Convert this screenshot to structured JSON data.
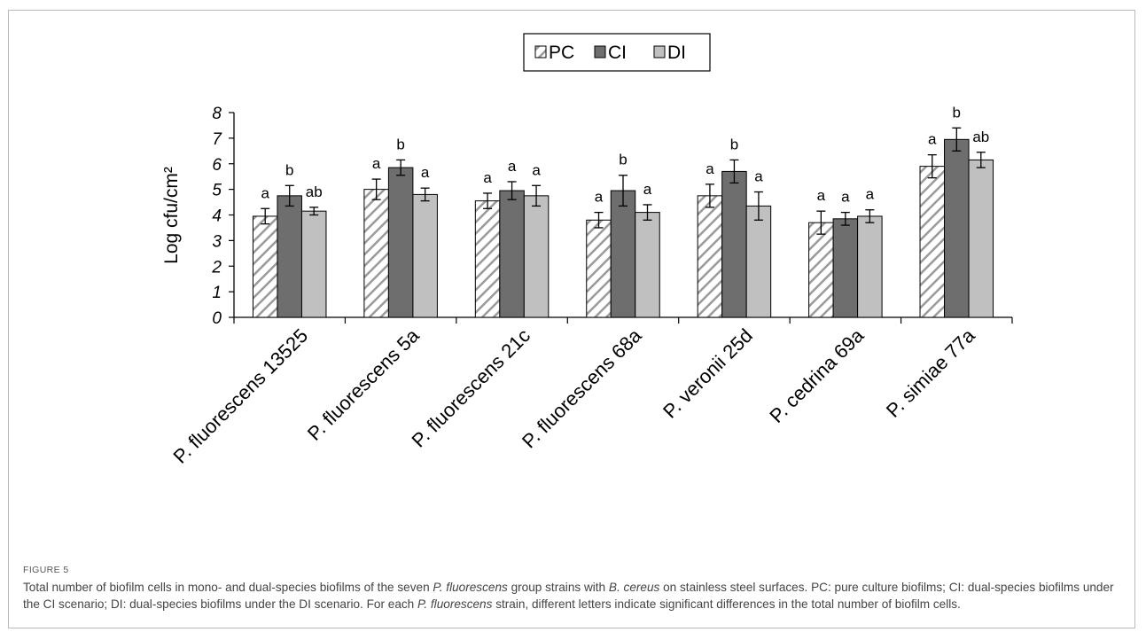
{
  "figure_label": "FIGURE 5",
  "caption": {
    "parts": [
      {
        "t": "Total number of biofilm cells in mono- and dual-species biofilms of the seven "
      },
      {
        "t": "P. fluorescens",
        "i": true
      },
      {
        "t": " group strains with "
      },
      {
        "t": "B. cereus",
        "i": true
      },
      {
        "t": " on stainless steel surfaces. PC: pure culture biofilms; CI: dual-species biofilms under the CI scenario; DI: dual-species biofilms under the DI scenario. For each "
      },
      {
        "t": "P. fluorescens",
        "i": true
      },
      {
        "t": " strain, different letters indicate significant differences in the total number of biofilm cells."
      }
    ]
  },
  "chart_data": {
    "type": "bar",
    "title": "",
    "xlabel": "",
    "ylabel": "Log cfu/cm²",
    "ylim": [
      0,
      8
    ],
    "yticks": [
      "0",
      "1",
      "2",
      "3",
      "4",
      "5",
      "6",
      "7",
      "8"
    ],
    "grid": false,
    "legend_position": "top-center",
    "categories": [
      "P. fluorescens 13525",
      "P. fluorescens 5a",
      "P. fluorescens 21c",
      "P. fluorescens 68a",
      "P. veronii 25d",
      "P. cedrina 69a",
      "P. simiae 77a"
    ],
    "series": [
      {
        "name": "PC",
        "pattern": "hatched",
        "color": "#ffffff",
        "values": [
          3.95,
          5.0,
          4.55,
          3.8,
          4.75,
          3.7,
          5.9
        ],
        "errors": [
          0.3,
          0.4,
          0.3,
          0.3,
          0.45,
          0.45,
          0.45
        ],
        "letters": [
          "a",
          "a",
          "a",
          "a",
          "a",
          "a",
          "a"
        ]
      },
      {
        "name": "CI",
        "pattern": "solid",
        "color": "#6e6e6e",
        "values": [
          4.75,
          5.85,
          4.95,
          4.95,
          5.7,
          3.85,
          6.95
        ],
        "errors": [
          0.4,
          0.3,
          0.35,
          0.6,
          0.45,
          0.25,
          0.45
        ],
        "letters": [
          "b",
          "b",
          "a",
          "b",
          "b",
          "a",
          "b"
        ]
      },
      {
        "name": "DI",
        "pattern": "solid",
        "color": "#c0c0c0",
        "values": [
          4.15,
          4.8,
          4.75,
          4.1,
          4.35,
          3.95,
          6.15
        ],
        "errors": [
          0.15,
          0.25,
          0.4,
          0.3,
          0.55,
          0.25,
          0.3
        ],
        "letters": [
          "ab",
          "a",
          "a",
          "a",
          "a",
          "a",
          "ab"
        ]
      }
    ]
  }
}
